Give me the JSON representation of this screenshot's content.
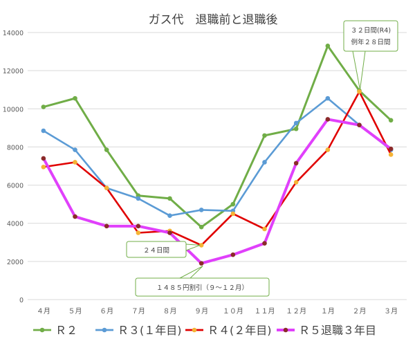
{
  "chart_data": {
    "type": "line",
    "title": "ガス代　退職前と退職後",
    "categories": [
      "４月",
      "５月",
      "６月",
      "７月",
      "８月",
      "９月",
      "１０月",
      "１１月",
      "１２月",
      "１月",
      "２月",
      "３月"
    ],
    "ylim": [
      0,
      14000
    ],
    "yticks": [
      "0",
      "2000",
      "4000",
      "6000",
      "8000",
      "10000",
      "12000",
      "14000"
    ],
    "grid": true,
    "legend_position": "bottom",
    "series": [
      {
        "name": "Ｒ２",
        "color": "#70AD47",
        "marker_color": "#70AD47",
        "values": [
          10100,
          10550,
          7850,
          5450,
          5300,
          3800,
          5000,
          8600,
          8950,
          13300,
          10950,
          9400
        ]
      },
      {
        "name": "Ｒ３(１年目)",
        "color": "#5B9BD5",
        "marker_color": "#5B9BD5",
        "values": [
          8850,
          7850,
          5850,
          5300,
          4400,
          4700,
          4650,
          7200,
          9250,
          10550,
          9150,
          7850
        ]
      },
      {
        "name": "Ｒ４(２年目)",
        "color": "#E00000",
        "marker_color": "#F5B335",
        "values": [
          6950,
          7200,
          5850,
          3500,
          3600,
          2850,
          4500,
          3700,
          6150,
          7850,
          10900,
          7600
        ]
      },
      {
        "name": "Ｒ５退職３年目",
        "color": "#E040FB",
        "marker_color": "#8B2A2A",
        "values": [
          7400,
          4350,
          3850,
          3850,
          3500,
          1900,
          2350,
          2950,
          7150,
          9450,
          9150,
          7900
        ]
      }
    ],
    "annotations": [
      {
        "lines": [
          "３２日間(R4)",
          "例年２８日間"
        ]
      },
      {
        "lines": [
          "２４日間"
        ]
      },
      {
        "lines": [
          "１４８５円割引（９～１２月）"
        ]
      }
    ]
  }
}
